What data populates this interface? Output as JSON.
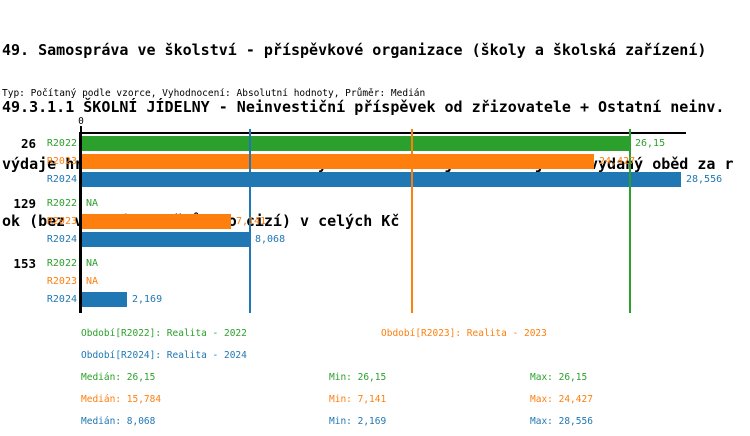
{
  "header": {
    "title_lines": [
      "49. Samospráva ve školství - příspěvkové organizace (školy a školská zařízení)",
      "49.3.1.1 ŠKOLNÍ JÍDELNY - Neinvestiční příspěvek od zřizovatele + Ostatní neinv.",
      "výdaje hrazené zřizovatelem + Úhrady externím subjektům na jeden vydaný oběd za r",
      "ok (bez vydaných obědů pro cizí) v celých Kč"
    ],
    "subtitle": "Typ: Počítaný podle vzorce, Vyhodnocení: Absolutní hodnoty, Průměr: Medián"
  },
  "chart_data": {
    "type": "bar",
    "orientation": "horizontal",
    "unit": "Kč (celé), na jeden vydaný oběd",
    "axis": {
      "zero_label": "0",
      "xmin": 0,
      "xmax": 28.8,
      "grid": false
    },
    "series_colors": {
      "R2022": "#2ca02c",
      "R2023": "#ff7f0e",
      "R2024": "#1f77b4"
    },
    "groups": [
      {
        "id": "26",
        "bars": [
          {
            "series": "R2022",
            "value": 26.15,
            "label": "26,15"
          },
          {
            "series": "R2023",
            "value": 24.427,
            "label": "24,427"
          },
          {
            "series": "R2024",
            "value": 28.556,
            "label": "28,556"
          }
        ]
      },
      {
        "id": "129",
        "bars": [
          {
            "series": "R2022",
            "value": null,
            "label": "NA"
          },
          {
            "series": "R2023",
            "value": 7.141,
            "label": "7,141"
          },
          {
            "series": "R2024",
            "value": 8.068,
            "label": "8,068"
          }
        ]
      },
      {
        "id": "153",
        "bars": [
          {
            "series": "R2022",
            "value": null,
            "label": "NA"
          },
          {
            "series": "R2023",
            "value": null,
            "label": "NA"
          },
          {
            "series": "R2024",
            "value": 2.169,
            "label": "2,169"
          }
        ]
      }
    ],
    "median_lines": [
      {
        "series": "R2022",
        "value": 26.15
      },
      {
        "series": "R2023",
        "value": 15.784
      },
      {
        "series": "R2024",
        "value": 8.068
      }
    ]
  },
  "legend": {
    "periods": [
      {
        "series": "R2022",
        "label": "Období[R2022]: Realita - 2022"
      },
      {
        "series": "R2023",
        "label": "Období[R2023]: Realita - 2023"
      },
      {
        "series": "R2024",
        "label": "Období[R2024]: Realita - 2024"
      }
    ],
    "stats": [
      {
        "series": "R2022",
        "median": "Medián: 26,15",
        "min": "Min: 26,15",
        "max": "Max: 26,15"
      },
      {
        "series": "R2023",
        "median": "Medián: 15,784",
        "min": "Min: 7,141",
        "max": "Max: 24,427"
      },
      {
        "series": "R2024",
        "median": "Medián: 8,068",
        "min": "Min: 2,169",
        "max": "Max: 28,556"
      }
    ]
  }
}
